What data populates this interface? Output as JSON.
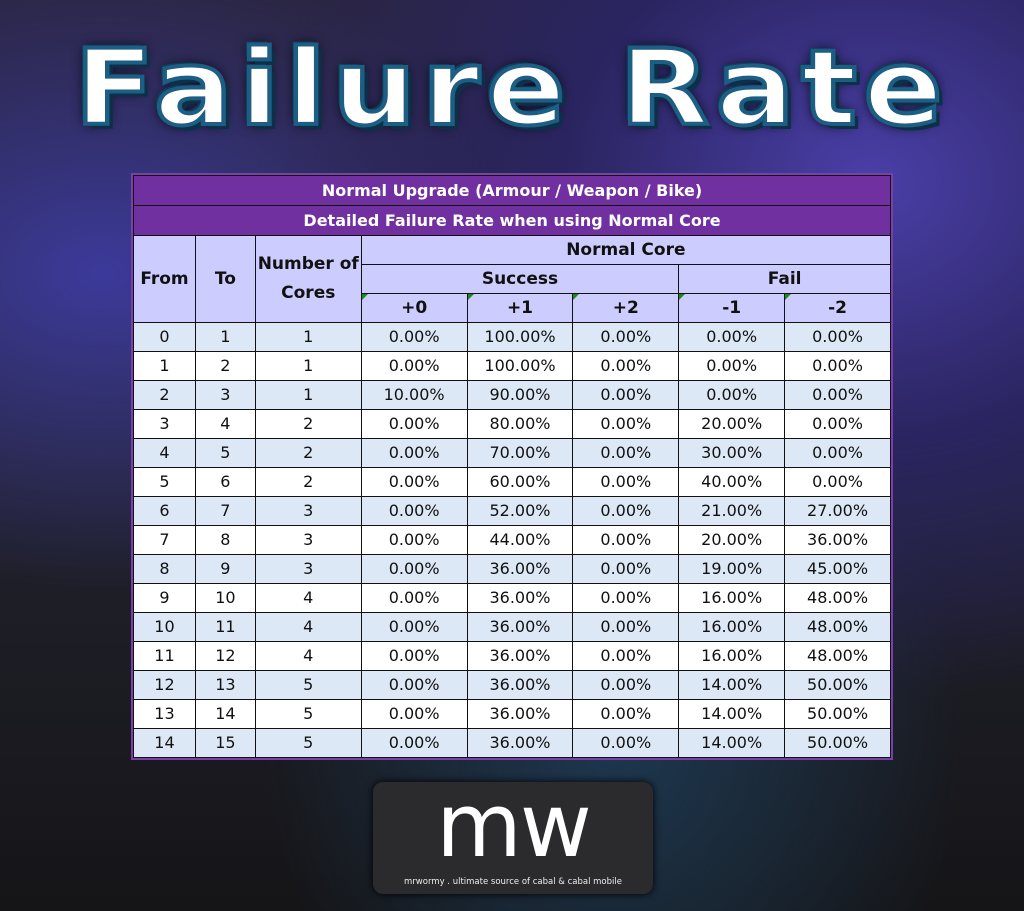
{
  "title": "Failure Rate",
  "table": {
    "title": "Normal Upgrade (Armour / Weapon / Bike)",
    "subtitle": "Detailed Failure Rate when using Normal Core",
    "headers": {
      "from": "From",
      "to": "To",
      "cores": "Number of Cores",
      "group": "Normal Core",
      "success": "Success",
      "fail": "Fail",
      "cols": [
        "+0",
        "+1",
        "+2",
        "-1",
        "-2"
      ]
    },
    "rows": [
      [
        "0",
        "1",
        "1",
        "0.00%",
        "100.00%",
        "0.00%",
        "0.00%",
        "0.00%"
      ],
      [
        "1",
        "2",
        "1",
        "0.00%",
        "100.00%",
        "0.00%",
        "0.00%",
        "0.00%"
      ],
      [
        "2",
        "3",
        "1",
        "10.00%",
        "90.00%",
        "0.00%",
        "0.00%",
        "0.00%"
      ],
      [
        "3",
        "4",
        "2",
        "0.00%",
        "80.00%",
        "0.00%",
        "20.00%",
        "0.00%"
      ],
      [
        "4",
        "5",
        "2",
        "0.00%",
        "70.00%",
        "0.00%",
        "30.00%",
        "0.00%"
      ],
      [
        "5",
        "6",
        "2",
        "0.00%",
        "60.00%",
        "0.00%",
        "40.00%",
        "0.00%"
      ],
      [
        "6",
        "7",
        "3",
        "0.00%",
        "52.00%",
        "0.00%",
        "21.00%",
        "27.00%"
      ],
      [
        "7",
        "8",
        "3",
        "0.00%",
        "44.00%",
        "0.00%",
        "20.00%",
        "36.00%"
      ],
      [
        "8",
        "9",
        "3",
        "0.00%",
        "36.00%",
        "0.00%",
        "19.00%",
        "45.00%"
      ],
      [
        "9",
        "10",
        "4",
        "0.00%",
        "36.00%",
        "0.00%",
        "16.00%",
        "48.00%"
      ],
      [
        "10",
        "11",
        "4",
        "0.00%",
        "36.00%",
        "0.00%",
        "16.00%",
        "48.00%"
      ],
      [
        "11",
        "12",
        "4",
        "0.00%",
        "36.00%",
        "0.00%",
        "16.00%",
        "48.00%"
      ],
      [
        "12",
        "13",
        "5",
        "0.00%",
        "36.00%",
        "0.00%",
        "14.00%",
        "50.00%"
      ],
      [
        "13",
        "14",
        "5",
        "0.00%",
        "36.00%",
        "0.00%",
        "14.00%",
        "50.00%"
      ],
      [
        "14",
        "15",
        "5",
        "0.00%",
        "36.00%",
        "0.00%",
        "14.00%",
        "50.00%"
      ]
    ]
  },
  "logo": {
    "text": "mw",
    "tagline": "mrwormy . ultimate source of cabal & cabal mobile"
  },
  "colors": {
    "header_purple": "#7030a0",
    "header_lavender": "#ccccff",
    "row_alt": "#dce8f6"
  }
}
